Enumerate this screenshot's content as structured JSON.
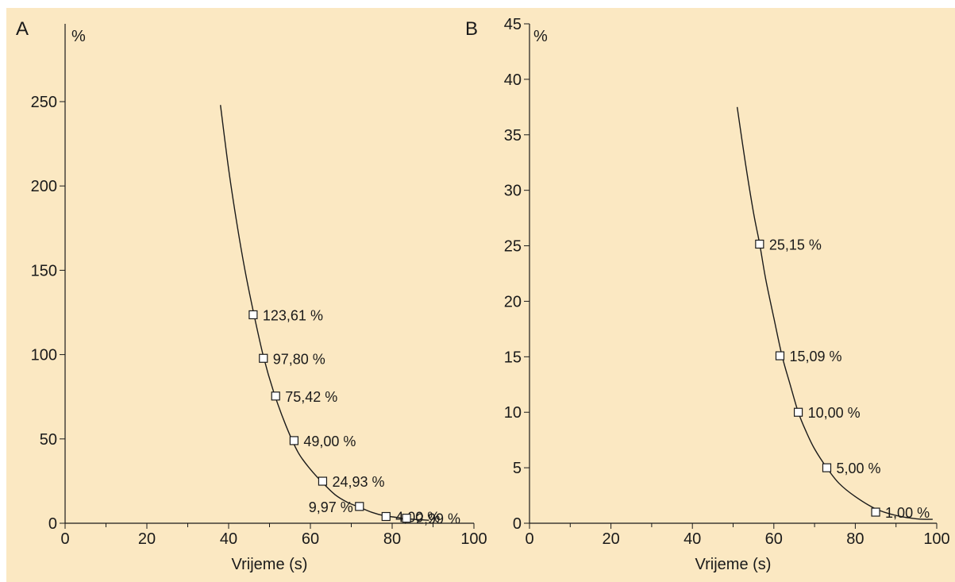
{
  "background_color": "#fbe8c2",
  "line_color": "#1a1a1a",
  "marker_fill": "#ffffff",
  "chart_data": [
    {
      "type": "line",
      "panel_label": "A",
      "ylabel": "%",
      "xlabel": "Vrijeme (s)",
      "xlim": [
        0,
        100
      ],
      "ylim": [
        0,
        250
      ],
      "xticks": [
        0,
        20,
        40,
        60,
        80,
        100
      ],
      "yticks": [
        0,
        50,
        100,
        150,
        200,
        250
      ],
      "grid": false,
      "curve": {
        "x": [
          38,
          40,
          42,
          44,
          46,
          48.5,
          51,
          54,
          57,
          60,
          63,
          66,
          69,
          72,
          75,
          78,
          81,
          83,
          86,
          89
        ],
        "y": [
          248,
          210,
          178,
          150,
          126,
          99,
          78,
          58,
          42,
          32,
          24,
          17,
          12.5,
          9.5,
          6.5,
          4.5,
          3.5,
          2.8,
          2.2,
          1.8
        ]
      },
      "points": [
        {
          "x": 46,
          "y": 123.61,
          "label": "123,61 %"
        },
        {
          "x": 48.5,
          "y": 97.8,
          "label": "97,80 %"
        },
        {
          "x": 51.5,
          "y": 75.42,
          "label": "75,42 %"
        },
        {
          "x": 56,
          "y": 49.0,
          "label": "49,00 %"
        },
        {
          "x": 63,
          "y": 24.93,
          "label": "24,93 %"
        },
        {
          "x": 72,
          "y": 9.97,
          "label": "9,97 %"
        },
        {
          "x": 78.5,
          "y": 4.0,
          "label": "4,00 %"
        },
        {
          "x": 83.5,
          "y": 2.99,
          "label": "2,99 %"
        }
      ]
    },
    {
      "type": "line",
      "panel_label": "B",
      "ylabel": "%",
      "xlabel": "Vrijeme (s)",
      "xlim": [
        0,
        100
      ],
      "ylim": [
        0,
        45
      ],
      "xticks": [
        0,
        20,
        40,
        60,
        80,
        100
      ],
      "yticks": [
        0,
        5,
        10,
        15,
        20,
        25,
        30,
        35,
        40,
        45
      ],
      "grid": false,
      "curve": {
        "x": [
          51,
          53,
          55,
          56.5,
          58,
          60,
          62,
          64,
          66,
          68,
          70,
          73,
          76,
          80,
          85,
          90,
          95,
          99
        ],
        "y": [
          37.5,
          32.5,
          28,
          25.2,
          22,
          18.5,
          15.1,
          12.5,
          10.0,
          8.2,
          6.7,
          5.0,
          3.6,
          2.4,
          1.3,
          0.7,
          0.4,
          0.35
        ]
      },
      "points": [
        {
          "x": 56.5,
          "y": 25.15,
          "label": "25,15 %"
        },
        {
          "x": 61.5,
          "y": 15.09,
          "label": "15,09 %"
        },
        {
          "x": 66,
          "y": 10.0,
          "label": "10,00 %"
        },
        {
          "x": 73,
          "y": 5.0,
          "label": "5,00 %"
        },
        {
          "x": 85,
          "y": 1.0,
          "label": "1,00 %"
        }
      ]
    }
  ]
}
